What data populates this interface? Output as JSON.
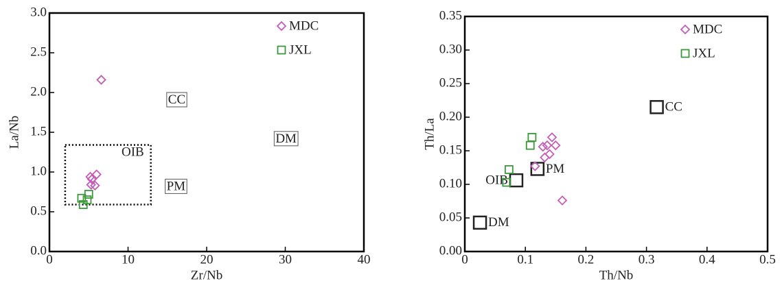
{
  "chart_data": [
    {
      "type": "scatter",
      "xlabel": "Zr/Nb",
      "ylabel": "La/Nb",
      "xlim": [
        0,
        40
      ],
      "ylim": [
        0,
        3
      ],
      "xticks": [
        0,
        10,
        20,
        30,
        40
      ],
      "yticks": [
        {
          "value": 0,
          "label": "0.0"
        },
        0.5,
        {
          "value": 1,
          "label": "1.0"
        },
        1.5,
        {
          "value": 2,
          "label": "2.0"
        },
        2.5,
        {
          "value": 3,
          "label": "3.0"
        }
      ],
      "legend": "upper right",
      "series": [
        {
          "name": "MDC",
          "color": "#c45cb8",
          "marker": "diamond",
          "x": [
            6.6,
            5.2,
            5.4,
            6.0,
            5.3,
            5.8
          ],
          "values": [
            2.16,
            0.94,
            0.91,
            0.97,
            0.84,
            0.83
          ]
        },
        {
          "name": "JXL",
          "color": "#3a9a3a",
          "marker": "square",
          "x": [
            4.1,
            5.0,
            4.8,
            4.3
          ],
          "values": [
            0.67,
            0.72,
            0.65,
            0.59
          ]
        }
      ],
      "regions": [
        {
          "x": [
            2.0,
            12.9
          ],
          "y": [
            0.59,
            1.34
          ]
        }
      ],
      "annotations": [
        {
          "text": "CC",
          "x": 16.2,
          "y": 1.9,
          "boxed": true
        },
        {
          "text": "DM",
          "x": 30.1,
          "y": 1.41,
          "boxed": true
        },
        {
          "text": "PM",
          "x": 16.1,
          "y": 0.81,
          "boxed": true
        },
        {
          "text": "OIB",
          "x": 10.6,
          "y": 1.24,
          "boxed": false
        }
      ]
    },
    {
      "type": "scatter",
      "xlabel": "Th/Nb",
      "ylabel": "Th/La",
      "xlim": [
        0,
        0.5
      ],
      "ylim": [
        0,
        0.35
      ],
      "xticks": [
        0,
        0.1,
        0.2,
        0.3,
        0.4,
        0.5
      ],
      "yticks": [
        {
          "value": 0,
          "label": "0.00"
        },
        0.05,
        {
          "value": 0.1,
          "label": "0.10"
        },
        0.15,
        {
          "value": 0.2,
          "label": "0.20"
        },
        0.25,
        {
          "value": 0.3,
          "label": "0.30"
        },
        0.35
      ],
      "legend": "upper right",
      "series": [
        {
          "name": "MDC",
          "color": "#c45cb8",
          "marker": "diamond",
          "x": [
            0.144,
            0.136,
            0.15,
            0.129,
            0.14,
            0.132,
            0.116,
            0.161
          ],
          "values": [
            0.17,
            0.158,
            0.158,
            0.156,
            0.145,
            0.14,
            0.127,
            0.076
          ]
        },
        {
          "name": "JXL",
          "color": "#3a9a3a",
          "marker": "square",
          "x": [
            0.111,
            0.108,
            0.073,
            0.069
          ],
          "values": [
            0.17,
            0.158,
            0.122,
            0.103
          ]
        }
      ],
      "reference_points": [
        {
          "text": "CC",
          "x": 0.317,
          "y": 0.215,
          "side": "right"
        },
        {
          "text": "PM",
          "x": 0.12,
          "y": 0.123,
          "side": "right"
        },
        {
          "text": "OIB",
          "x": 0.085,
          "y": 0.106,
          "side": "left"
        },
        {
          "text": "DM",
          "x": 0.025,
          "y": 0.043,
          "side": "right"
        }
      ]
    }
  ]
}
